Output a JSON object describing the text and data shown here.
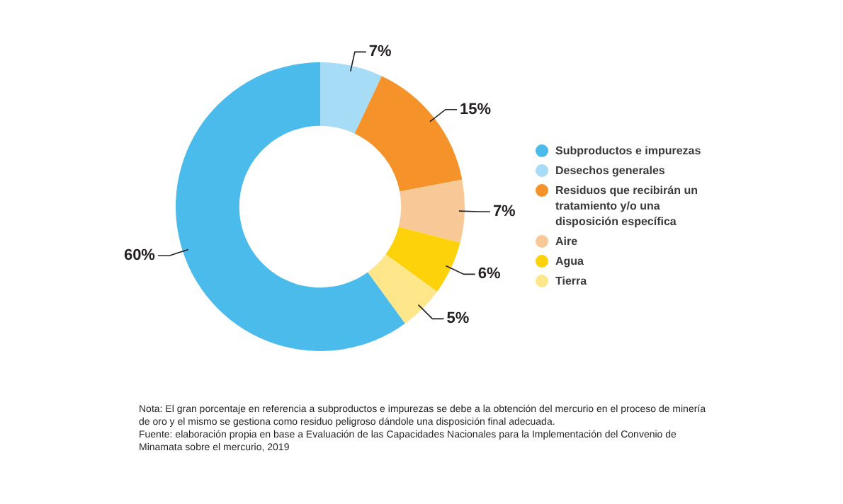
{
  "chart_data": {
    "type": "donut",
    "categories": [
      "Subproductos e impurezas",
      "Desechos generales",
      "Residuos que recibirán un tratamiento y/o una disposición específica",
      "Aire",
      "Agua",
      "Tierra"
    ],
    "values": [
      60,
      7,
      15,
      7,
      6,
      5
    ],
    "colors": [
      "#4bbbec",
      "#a6dcf5",
      "#f5922a",
      "#f8c896",
      "#fdd20a",
      "#fee68a"
    ],
    "value_labels": [
      "60%",
      "7%",
      "15%",
      "7%",
      "6%",
      "5%"
    ],
    "legend": "right",
    "annotations": [
      "Nota: El gran porcentaje en referencia a subproductos e impurezas se debe a la obtención del mercurio en el proceso de minería de oro y el mismo se gestiona como residuo peligroso dándole una disposición final adecuada.",
      "Fuente: elaboración propia en base a Evaluación de las Capacidades Nacionales para la Implementación del Convenio de Minamata sobre el mercurio, 2019"
    ]
  }
}
